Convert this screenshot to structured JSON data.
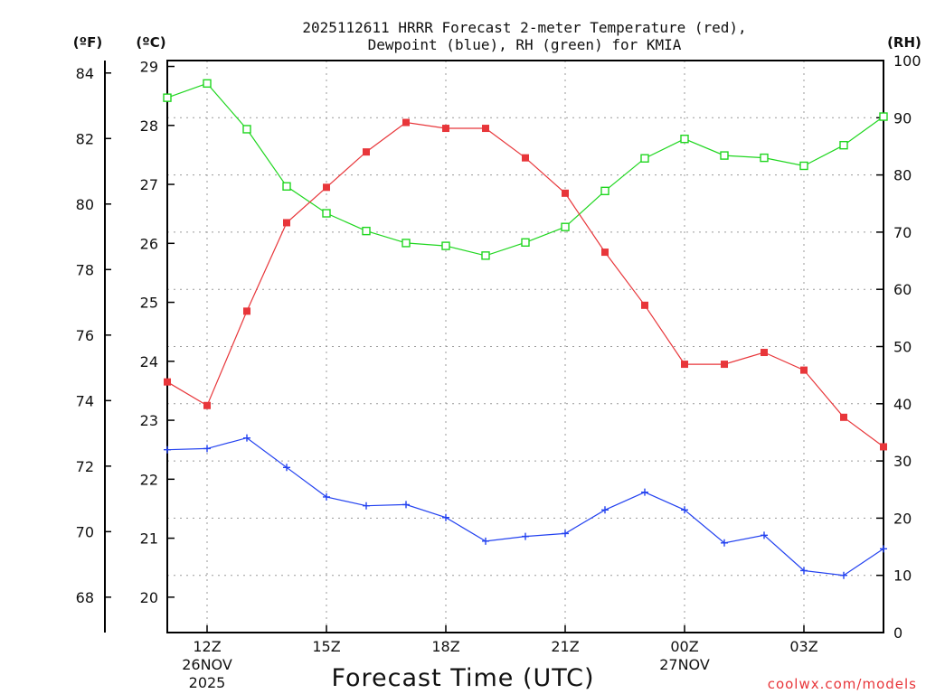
{
  "chart_data": {
    "type": "line",
    "title_line1": "2025112611 HRRR Forecast 2-meter Temperature (red),",
    "title_line2": "Dewpoint (blue), RH (green) for KMIA",
    "xlabel": "Forecast Time (UTC)",
    "credit": "coolwx.com/models",
    "left_outer_unit": "(ºF)",
    "left_inner_unit": "(ºC)",
    "right_unit": "(RH)",
    "x_hours": [
      11,
      12,
      13,
      14,
      15,
      16,
      17,
      18,
      19,
      20,
      21,
      22,
      23,
      24,
      25,
      26,
      27,
      28,
      29
    ],
    "x_ticks": [
      {
        "hour": 12,
        "label": "12Z",
        "sub1": "26NOV",
        "sub2": "2025"
      },
      {
        "hour": 15,
        "label": "15Z",
        "sub1": "",
        "sub2": ""
      },
      {
        "hour": 18,
        "label": "18Z",
        "sub1": "",
        "sub2": ""
      },
      {
        "hour": 21,
        "label": "21Z",
        "sub1": "",
        "sub2": ""
      },
      {
        "hour": 24,
        "label": "00Z",
        "sub1": "27NOV",
        "sub2": ""
      },
      {
        "hour": 27,
        "label": "03Z",
        "sub1": "",
        "sub2": ""
      }
    ],
    "ylim_c": [
      19.4,
      29.1
    ],
    "y_ticks_c": [
      "20",
      "21",
      "22",
      "23",
      "24",
      "25",
      "26",
      "27",
      "28",
      "29"
    ],
    "y_ticks_f": [
      "68",
      "70",
      "72",
      "74",
      "76",
      "78",
      "80",
      "82",
      "84"
    ],
    "ylim_rh": [
      0,
      100
    ],
    "y_ticks_rh": [
      "0",
      "10",
      "20",
      "30",
      "40",
      "50",
      "60",
      "70",
      "80",
      "90",
      "100"
    ],
    "series": [
      {
        "name": "Temperature",
        "color": "#e8363a",
        "marker": "filled-square",
        "axis": "celsius",
        "values": [
          23.65,
          23.25,
          24.85,
          26.35,
          26.95,
          27.55,
          28.05,
          27.95,
          27.95,
          27.45,
          26.85,
          25.85,
          24.95,
          23.95,
          23.95,
          24.15,
          23.85,
          23.05,
          22.55
        ]
      },
      {
        "name": "Dewpoint",
        "color": "#2342f0",
        "marker": "plus",
        "axis": "celsius",
        "values": [
          22.5,
          22.52,
          22.7,
          22.2,
          21.7,
          21.55,
          21.57,
          21.35,
          20.95,
          21.03,
          21.08,
          21.48,
          21.78,
          21.48,
          20.92,
          21.05,
          20.45,
          20.37,
          20.82
        ]
      },
      {
        "name": "RH",
        "color": "#1fd61f",
        "marker": "open-square",
        "axis": "rh",
        "values": [
          93.5,
          96,
          88,
          78,
          73.3,
          70.2,
          68.1,
          67.6,
          65.9,
          68.2,
          70.9,
          77.2,
          82.9,
          86.3,
          83.4,
          83.0,
          81.6,
          85.2,
          90.2
        ]
      }
    ]
  }
}
